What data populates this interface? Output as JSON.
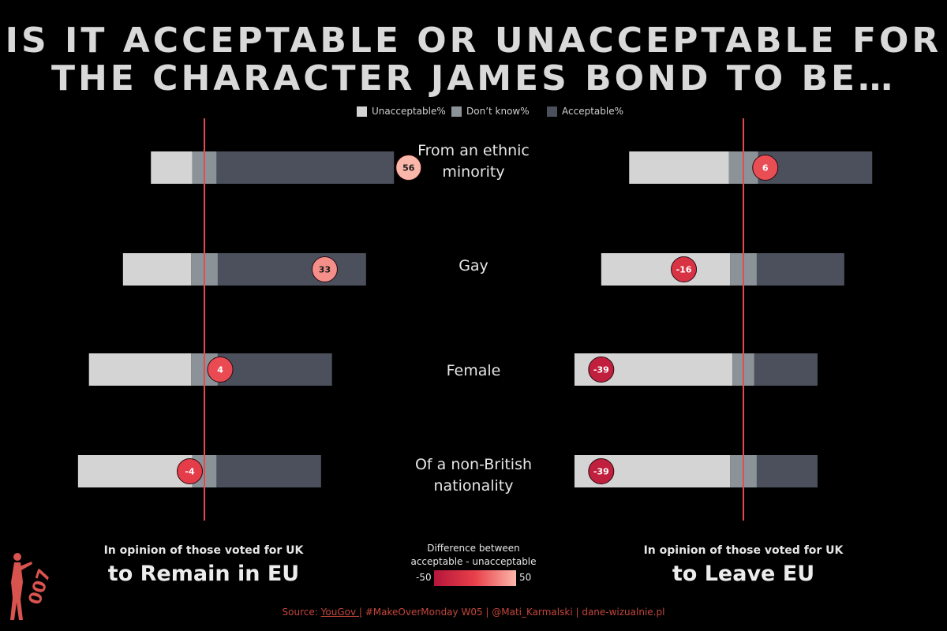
{
  "title_line1": "IS IT ACCEPTABLE OR UNACCEPTABLE FOR",
  "title_line2": "THE CHARACTER JAMES BOND TO BE…",
  "legend": [
    {
      "label": "Unacceptable%",
      "color": "#d4d4d4"
    },
    {
      "label": "Don’t know%",
      "color": "#8b9398"
    },
    {
      "label": "Acceptable%",
      "color": "#4b505c"
    }
  ],
  "categories": [
    "From an ethnic minority",
    "Gay",
    "Female",
    "Of a non-British nationality"
  ],
  "category_lines": [
    [
      "From an ethnic",
      "minority"
    ],
    [
      "Gay"
    ],
    [
      "Female"
    ],
    [
      "Of a non-British",
      "nationality"
    ]
  ],
  "panels": [
    {
      "subtitle": "In opinion of those voted for UK",
      "title": "to Remain in EU"
    },
    {
      "subtitle": "In opinion of those voted for UK",
      "title": "to Leave EU"
    }
  ],
  "color_scale": {
    "title_line1": "Difference between",
    "title_line2": "acceptable - unacceptable",
    "min_label": "-50",
    "max_label": "50",
    "min": -50,
    "max": 50,
    "colors": [
      "#b5163a",
      "#e8404a",
      "#fbb7a9"
    ]
  },
  "footer": {
    "prefix": "Source: ",
    "link": "YouGov |",
    "rest": " #MakeOverMonday W05 | @Mati_Karmalski | dane-wizualnie.pl"
  },
  "logo_text": "007",
  "chart_data": {
    "type": "bar",
    "stacked": "diverging",
    "categories": [
      "From an ethnic minority",
      "Gay",
      "Female",
      "Of a non-British nationality"
    ],
    "panels": [
      {
        "name": "to Remain in EU",
        "series": [
          {
            "name": "Unacceptable%",
            "values": [
              17,
              28,
              42,
              47
            ]
          },
          {
            "name": "Don’t know%",
            "values": [
              10,
              11,
              11,
              10
            ]
          },
          {
            "name": "Acceptable%",
            "values": [
              73,
              61,
              47,
              43
            ]
          }
        ],
        "difference": [
          56,
          33,
          4,
          -4
        ]
      },
      {
        "name": "to Leave EU",
        "series": [
          {
            "name": "Unacceptable%",
            "values": [
              41,
              53,
              65,
              64
            ]
          },
          {
            "name": "Don’t know%",
            "values": [
              12,
              11,
              9,
              11
            ]
          },
          {
            "name": "Acceptable%",
            "values": [
              47,
              36,
              26,
              25
            ]
          }
        ],
        "difference": [
          6,
          -16,
          -39,
          -39
        ]
      }
    ]
  }
}
